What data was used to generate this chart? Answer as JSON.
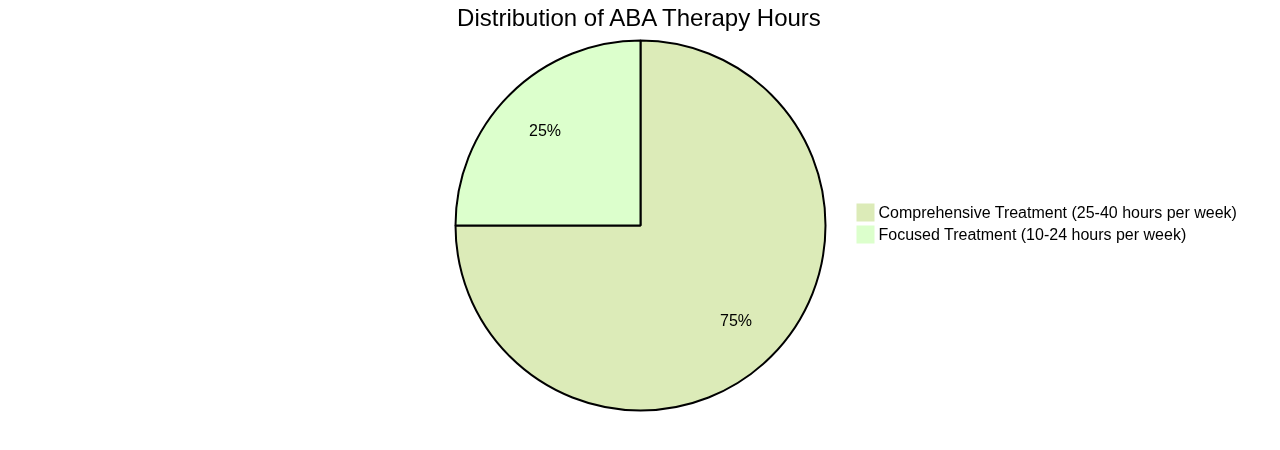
{
  "chart_data": {
    "type": "pie",
    "title": "Distribution of ABA Therapy Hours",
    "categories": [
      "Comprehensive Treatment (25-40 hours per week)",
      "Focused Treatment (10-24 hours per week)"
    ],
    "values": [
      75,
      25
    ],
    "colors": [
      "#dcebb8",
      "#dcffcc"
    ],
    "value_labels": [
      "75%",
      "25%"
    ],
    "legend": "right"
  }
}
